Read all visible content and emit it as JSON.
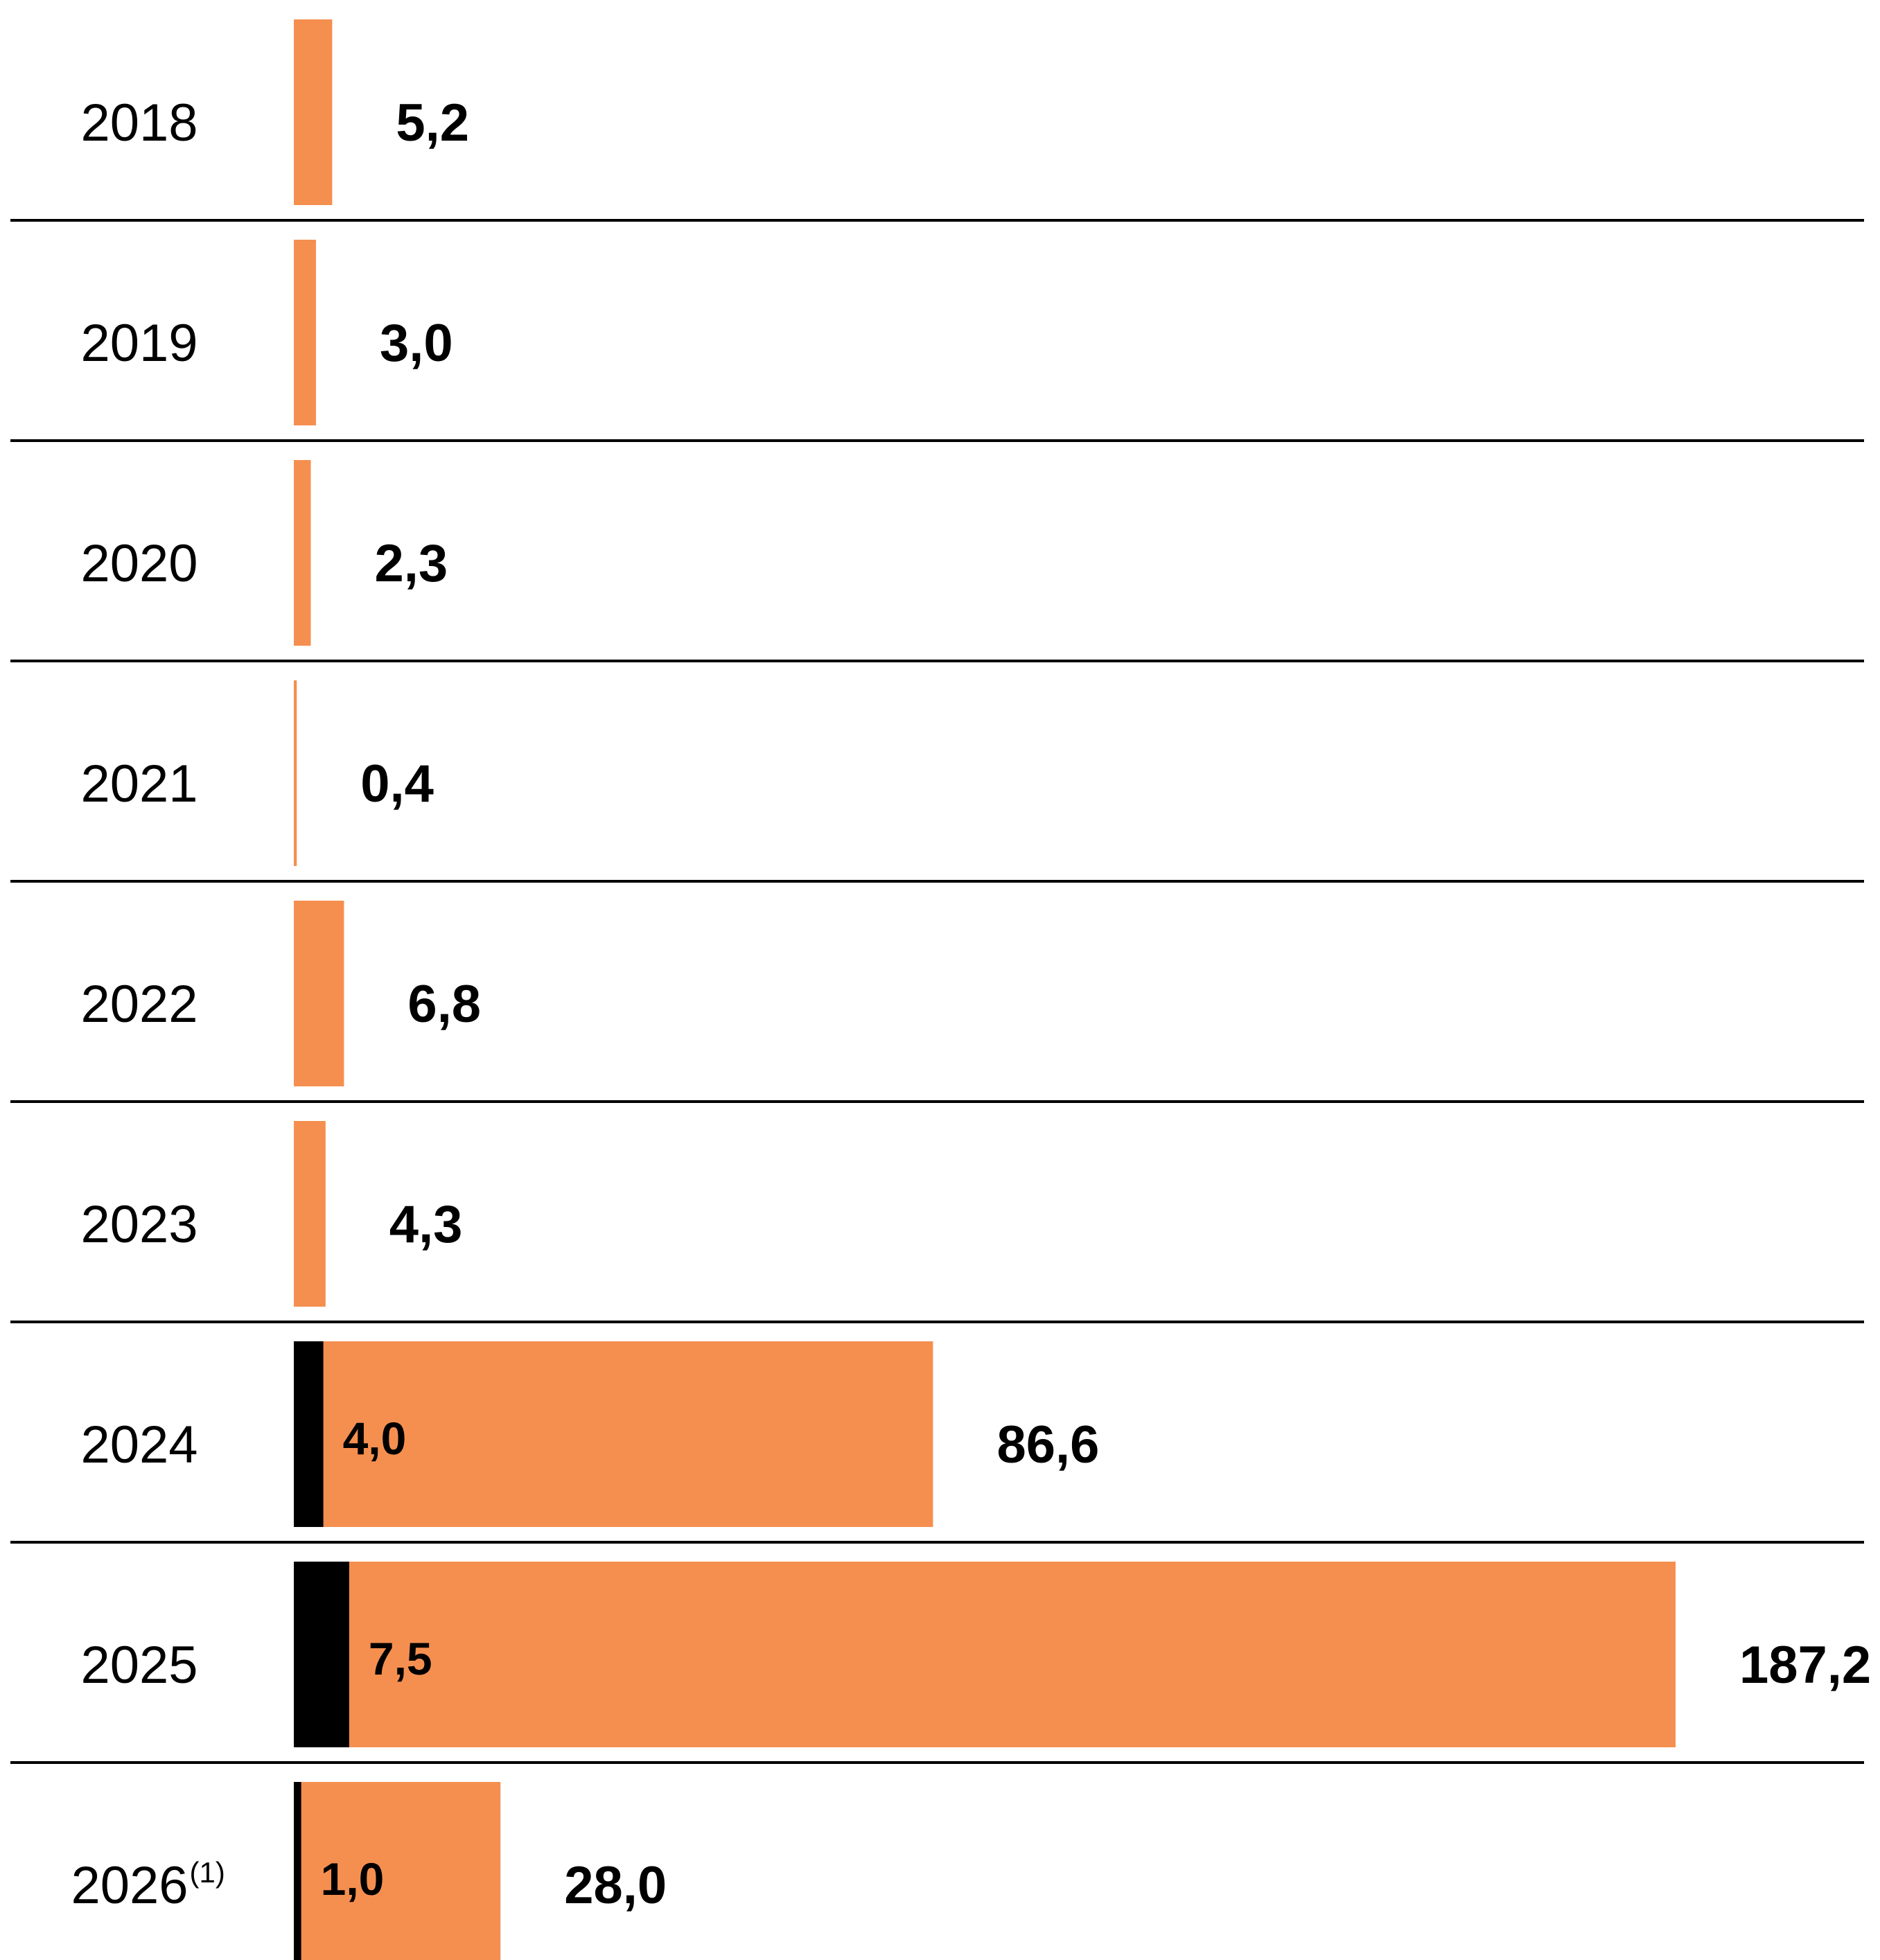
{
  "colors": {
    "primary_segment": "#F58F50",
    "secondary_segment": "#000000",
    "divider": "#000000"
  },
  "chart_data": {
    "type": "bar",
    "orientation": "horizontal",
    "stacked": true,
    "categories": [
      "2018",
      "2019",
      "2020",
      "2021",
      "2022",
      "2023",
      "2024",
      "2025",
      "2026"
    ],
    "category_notes": [
      "",
      "",
      "",
      "",
      "",
      "",
      "",
      "",
      "(1)"
    ],
    "totals": [
      5.2,
      3.0,
      2.3,
      0.4,
      6.8,
      4.3,
      86.6,
      187.2,
      28.0
    ],
    "total_labels": [
      "5,2",
      "3,0",
      "2,3",
      "0,4",
      "6,8",
      "4,3",
      "86,6",
      "187,2",
      "28,0"
    ],
    "black_segment_values": [
      0,
      0,
      0,
      0,
      0,
      0,
      4.0,
      7.5,
      1.0
    ],
    "black_segment_labels": [
      "",
      "",
      "",
      "",
      "",
      "",
      "4,0",
      "7,5",
      "1,0"
    ],
    "title": "",
    "xlabel": "",
    "ylabel": "",
    "xlim": [
      0,
      187.2
    ],
    "grid": false,
    "legend": "none"
  }
}
